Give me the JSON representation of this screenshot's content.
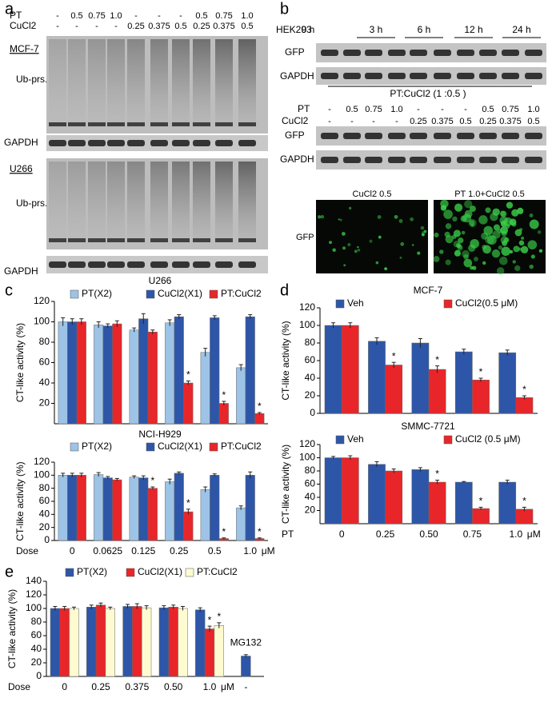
{
  "panel_labels": [
    "a",
    "b",
    "c",
    "d",
    "e"
  ],
  "panel_a": {
    "rows": [
      {
        "name": "PT",
        "values": [
          "-",
          "0.5",
          "0.75",
          "1.0",
          "-",
          "-",
          "-",
          "0.5",
          "0.75",
          "1.0"
        ]
      },
      {
        "name": "CuCl2",
        "values": [
          "-",
          "-",
          "-",
          "-",
          "0.25",
          "0.375",
          "0.5",
          "0.25",
          "0.375",
          "0.5"
        ]
      }
    ],
    "blots": [
      "MCF-7",
      "Ub-prs.",
      "GAPDH",
      "U266",
      "Ub-prs.",
      "GAPDH"
    ]
  },
  "panel_b": {
    "cell": "HEK293",
    "times": [
      "0 h",
      "3 h",
      "6 h",
      "12 h",
      "24 h"
    ],
    "blots_top": [
      "GFP",
      "GAPDH"
    ],
    "ratio": "PT:CuCl2 (1 :0.5 )",
    "rows": [
      {
        "name": "PT",
        "values": [
          "-",
          "0.5",
          "0.75",
          "1.0",
          "-",
          "-",
          "-",
          "0.5",
          "0.75",
          "1.0"
        ]
      },
      {
        "name": "CuCl2",
        "values": [
          "-",
          "-",
          "-",
          "-",
          "0.25",
          "0.375",
          "0.5",
          "0.25",
          "0.375",
          "0.5"
        ]
      }
    ],
    "blots_bottom": [
      "GFP",
      "GAPDH"
    ],
    "images": [
      "CuCl2 0.5",
      "PT 1.0+CuCl2 0.5"
    ],
    "image_label": "GFP"
  },
  "chart_data": [
    {
      "type": "bar",
      "title": "U266",
      "ylabel": "CT-like activity (%)",
      "categories": [
        null,
        null,
        null,
        null,
        null,
        null
      ],
      "series": [
        {
          "name": "PT(X2)",
          "color": "#9dc3e6",
          "values": [
            100,
            97,
            92,
            99,
            70,
            55
          ],
          "errors": [
            4,
            3,
            2,
            3,
            4,
            3
          ]
        },
        {
          "name": "CuCl2(X1)",
          "color": "#2e56a8",
          "values": [
            100,
            96,
            103,
            105,
            104,
            105
          ],
          "errors": [
            3,
            2,
            5,
            2,
            2,
            2
          ]
        },
        {
          "name": "PT:CuCl2",
          "color": "#e8262a",
          "values": [
            100,
            98,
            90,
            40,
            20,
            10
          ],
          "errors": [
            3,
            3,
            2,
            2,
            2,
            1
          ],
          "significance": [
            null,
            null,
            null,
            "*",
            "*",
            "*"
          ]
        }
      ],
      "ylim": [
        0,
        120
      ],
      "yticks": [
        20,
        40,
        60,
        80,
        100,
        120
      ]
    },
    {
      "type": "bar",
      "title": "NCI-H929",
      "ylabel": "CT-like activity (%)",
      "xlabel": "Dose",
      "x_unit": "μM",
      "categories": [
        "0",
        "0.0625",
        "0.125",
        "0.25",
        "0.5",
        "1.0"
      ],
      "series": [
        {
          "name": "PT(X2)",
          "color": "#9dc3e6",
          "values": [
            100,
            101,
            97,
            90,
            78,
            50
          ],
          "errors": [
            3,
            3,
            2,
            4,
            4,
            3
          ]
        },
        {
          "name": "CuCl2(X1)",
          "color": "#2e56a8",
          "values": [
            100,
            96,
            96,
            103,
            100,
            100
          ],
          "errors": [
            3,
            2,
            3,
            2,
            2,
            5
          ]
        },
        {
          "name": "PT:CuCl2",
          "color": "#e8262a",
          "values": [
            100,
            93,
            80,
            44,
            3,
            3
          ],
          "errors": [
            3,
            2,
            2,
            4,
            1,
            1
          ],
          "significance": [
            null,
            null,
            "*",
            "*",
            "*",
            "*"
          ]
        }
      ],
      "ylim": [
        0,
        120
      ],
      "yticks": [
        0,
        20,
        40,
        60,
        80,
        100,
        120
      ]
    },
    {
      "type": "bar",
      "title": "MCF-7",
      "ylabel": "CT-like activity (%)",
      "categories": [
        null,
        null,
        null,
        null,
        null
      ],
      "series": [
        {
          "name": "Veh",
          "color": "#2e56a8",
          "values": [
            100,
            82,
            80,
            70,
            69
          ],
          "errors": [
            3,
            4,
            5,
            3,
            3
          ]
        },
        {
          "name": "CuCl2(0.5 μM)",
          "color": "#e8262a",
          "values": [
            100,
            55,
            50,
            38,
            18
          ],
          "errors": [
            3,
            3,
            4,
            2,
            2
          ],
          "significance": [
            null,
            "*",
            "*",
            "*",
            "*"
          ]
        }
      ],
      "ylim": [
        0,
        120
      ],
      "yticks": [
        0,
        20,
        40,
        60,
        80,
        100,
        120
      ]
    },
    {
      "type": "bar",
      "title": "SMMC-7721",
      "ylabel": "CT-like activity (%)",
      "xlabel": "PT",
      "x_unit": "μM",
      "categories": [
        "0",
        "0.25",
        "0.50",
        "0.75",
        "1.0"
      ],
      "series": [
        {
          "name": "Veh",
          "color": "#2e56a8",
          "values": [
            100,
            90,
            82,
            63,
            63
          ],
          "errors": [
            2,
            4,
            3,
            1,
            3
          ]
        },
        {
          "name": "CuCl2 (0.5 μM)",
          "color": "#e8262a",
          "values": [
            100,
            80,
            63,
            23,
            22
          ],
          "errors": [
            3,
            3,
            3,
            2,
            3
          ],
          "significance": [
            null,
            null,
            "*",
            "*",
            "*"
          ]
        }
      ],
      "ylim": [
        0,
        120
      ],
      "yticks": [
        20,
        40,
        60,
        80,
        100,
        120
      ]
    },
    {
      "type": "bar",
      "ylabel": "CT-like activity (%)",
      "xlabel": "Dose",
      "x_unit": "μM",
      "categories": [
        "0",
        "0.25",
        "0.375",
        "0.50",
        "1.0"
      ],
      "series": [
        {
          "name": "PT(X2)",
          "color": "#2e56a8",
          "values": [
            100,
            102,
            103,
            101,
            98
          ],
          "errors": [
            3,
            3,
            3,
            3,
            3
          ]
        },
        {
          "name": "CuCl2(X1)",
          "color": "#e8262a",
          "values": [
            100,
            105,
            103,
            102,
            70
          ],
          "errors": [
            3,
            3,
            4,
            3,
            4
          ],
          "significance": [
            null,
            null,
            null,
            null,
            "*"
          ]
        },
        {
          "name": "PT:CuCl2",
          "color": "#fffbd0",
          "values": [
            100,
            100,
            101,
            100,
            75
          ],
          "errors": [
            2,
            2,
            3,
            3,
            4
          ],
          "significance": [
            null,
            null,
            null,
            null,
            "*"
          ]
        }
      ],
      "extra": {
        "name": "MG132",
        "category": "-",
        "value": 30,
        "error": 2,
        "color": "#2e56a8"
      },
      "ylim": [
        0,
        140
      ],
      "yticks": [
        0,
        20,
        40,
        60,
        80,
        100,
        120,
        140
      ]
    }
  ]
}
